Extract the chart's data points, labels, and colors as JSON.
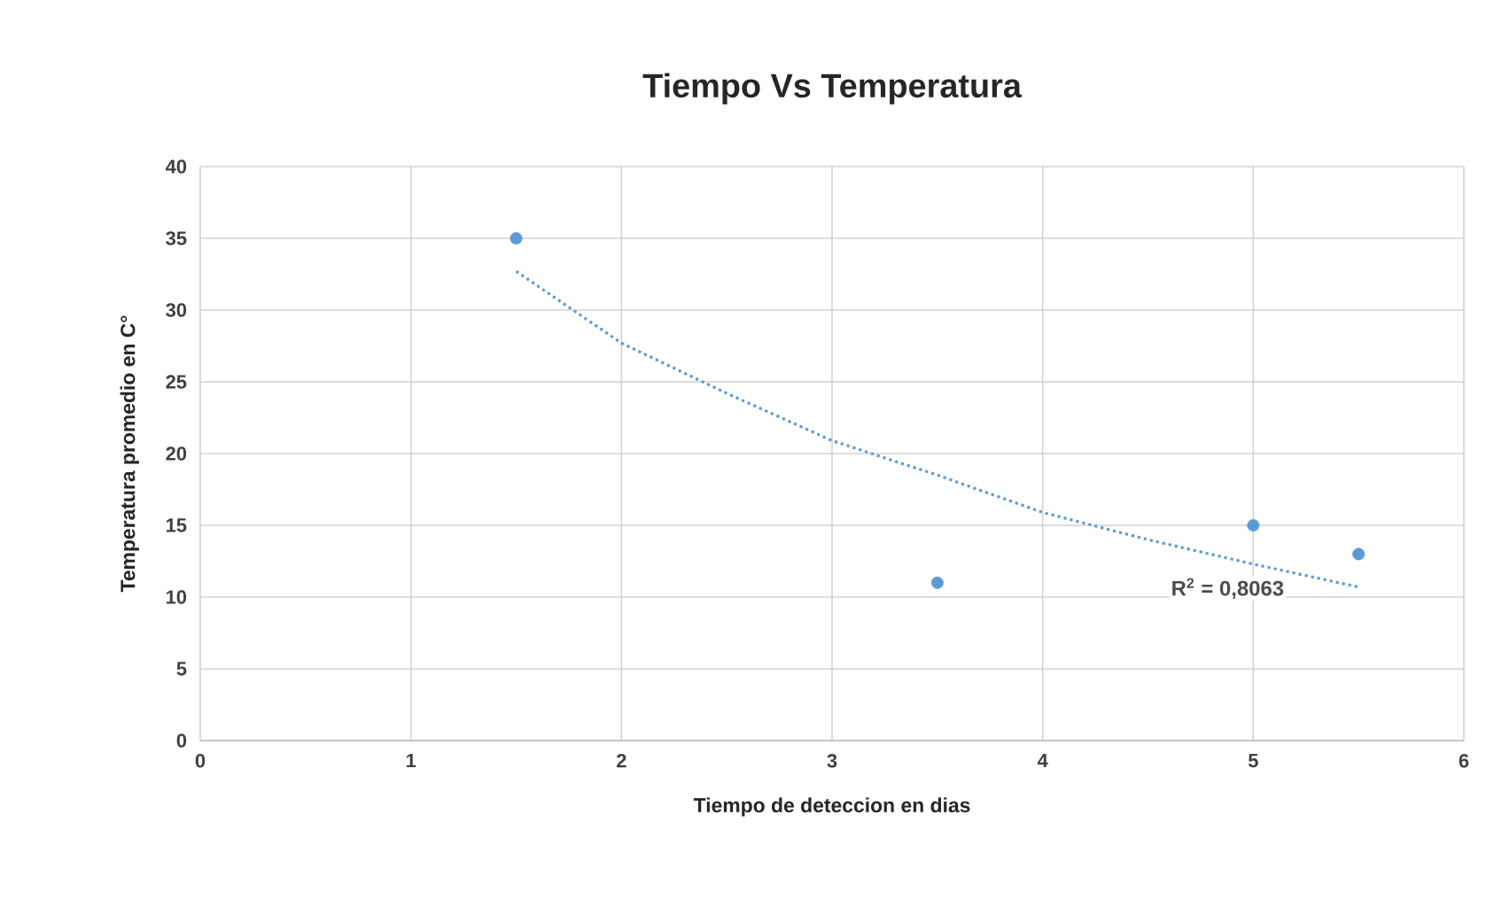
{
  "chart_data": {
    "type": "scatter",
    "title": "Tiempo Vs Temperatura",
    "xlabel": "Tiempo de deteccion en dias",
    "ylabel": "Temperatura promedio en C°",
    "xlim": [
      0,
      6
    ],
    "xticks": [
      0,
      1,
      2,
      3,
      4,
      5,
      6
    ],
    "ylim": [
      0,
      40
    ],
    "yticks": [
      0,
      5,
      10,
      15,
      20,
      25,
      30,
      35,
      40
    ],
    "grid": true,
    "series": [
      {
        "color": "#5b9bd5",
        "marker": "circle",
        "x": [
          1.5,
          3.5,
          5,
          5.5
        ],
        "values": [
          35,
          11,
          15,
          13
        ]
      },
      {
        "type": "line",
        "color": "#5b9bd5",
        "marker": "none",
        "line_style": "dotted",
        "x": [
          1.5,
          2,
          2.5,
          3,
          3.5,
          4,
          4.5,
          5,
          5.5
        ],
        "values": [
          32.7,
          27.7,
          24.2,
          20.9,
          18.5,
          15.9,
          14.0,
          12.3,
          10.7
        ]
      }
    ],
    "annotations": [
      "R$^{2}$ = 0,8063"
    ]
  }
}
